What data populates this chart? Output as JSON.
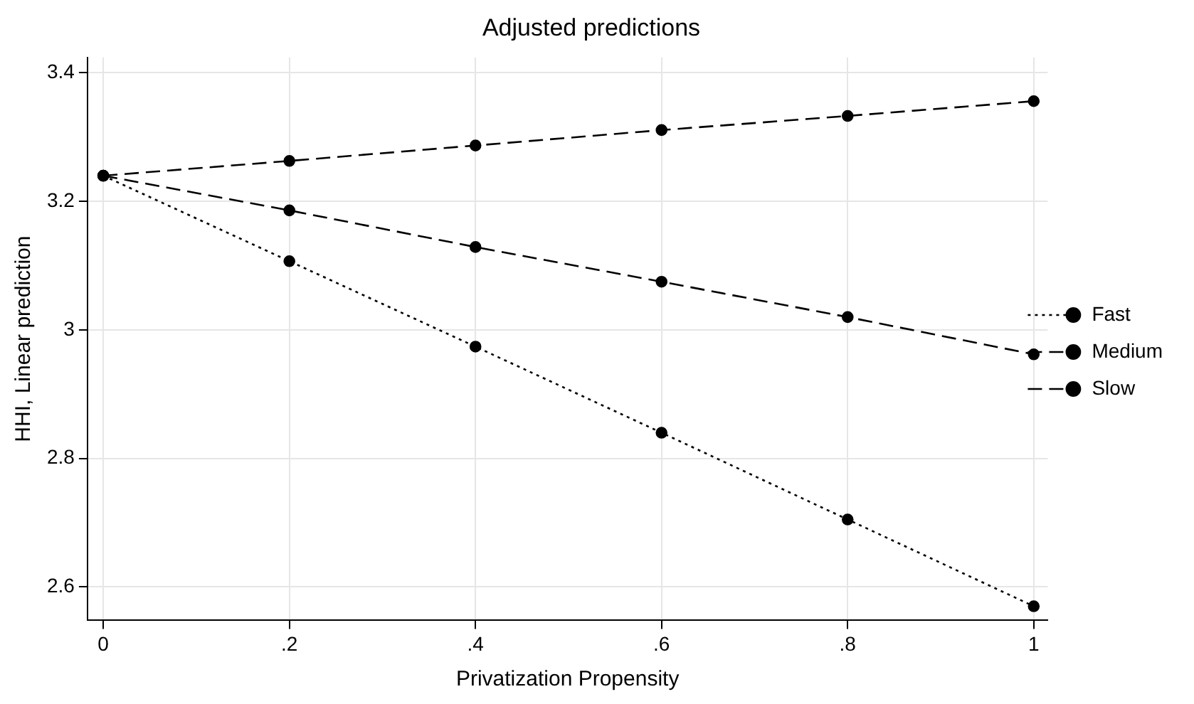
{
  "chart_data": {
    "type": "line",
    "title": "Adjusted predictions",
    "xlabel": "Privatization Propensity",
    "ylabel": "HHI, Linear prediction",
    "x": [
      0,
      0.2,
      0.4,
      0.6,
      0.8,
      1
    ],
    "series": [
      {
        "name": "Fast",
        "color": "#000000",
        "line_style": "dotted",
        "values": [
          3.24,
          3.107,
          2.974,
          2.84,
          2.705,
          2.57
        ]
      },
      {
        "name": "Medium",
        "color": "#000000",
        "line_style": "dashed",
        "values": [
          3.24,
          3.186,
          3.129,
          3.075,
          3.02,
          2.962
        ]
      },
      {
        "name": "Slow",
        "color": "#000000",
        "line_style": "dashed",
        "values": [
          3.24,
          3.263,
          3.287,
          3.311,
          3.333,
          3.356
        ]
      }
    ],
    "xlim": [
      -0.017,
      1.015
    ],
    "xticks": [
      0,
      {
        "value": 0.2,
        "label": ".2"
      },
      {
        "value": 0.4,
        "label": ".4"
      },
      {
        "value": 0.6,
        "label": ".6"
      },
      {
        "value": 0.8,
        "label": ".8"
      },
      1
    ],
    "ylim": [
      2.548,
      3.424
    ],
    "yticks": [
      2.6,
      2.8,
      3,
      3.2,
      3.4
    ],
    "grid": true,
    "legend": "right",
    "marker": "circle"
  }
}
